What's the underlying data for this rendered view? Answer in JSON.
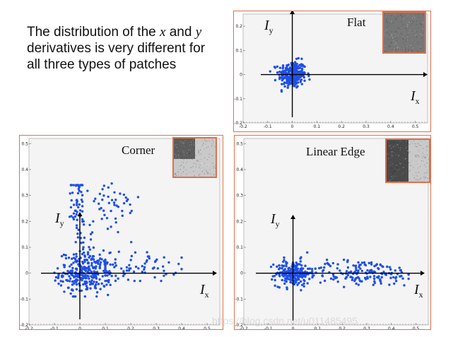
{
  "caption": {
    "line1_pre": "The distribution of the ",
    "x_var": "x",
    "line1_mid": " and ",
    "y_var": "y",
    "line2": "derivatives is very different for",
    "line3": "all three types of patches"
  },
  "axis_labels": {
    "x_base": "I",
    "x_sub": "x",
    "y_base": "I",
    "y_sub": "y"
  },
  "colors": {
    "points": "#1f4fe8",
    "frame": "#e0704a",
    "plot_bg": "#f4f4f4"
  },
  "icons": [
    "patch-thumbnail",
    "axis-arrow"
  ],
  "watermark": "https://blog.csdn.net/u011485495",
  "chart_data": [
    {
      "type": "scatter",
      "title": "Flat",
      "xlim": [
        -0.2,
        0.55
      ],
      "ylim": [
        -0.2,
        0.25
      ],
      "x_ticks": [
        -0.2,
        -0.1,
        0,
        0.1,
        0.2,
        0.3,
        0.4,
        0.5
      ],
      "x_tick_labels": [
        "-0.2",
        "-0.1",
        "0",
        "0.1",
        "0.2",
        "0.3",
        "0.4",
        "0.5"
      ],
      "y_ticks": [
        -0.2,
        -0.1,
        0,
        0.1,
        0.2
      ],
      "y_tick_labels": [
        "-0.2",
        "-0.1",
        "0",
        "0.1",
        "0.2"
      ],
      "clusters": [
        {
          "cx": 0.0,
          "cy": 0.0,
          "sx": 0.028,
          "sy": 0.028,
          "n": 260,
          "xmin": -0.09,
          "xmax": 0.07,
          "ymin": -0.07,
          "ymax": 0.09
        }
      ],
      "patch": {
        "kind": "flat"
      }
    },
    {
      "type": "scatter",
      "title": "Corner",
      "xlim": [
        -0.2,
        0.55
      ],
      "ylim": [
        -0.2,
        0.52
      ],
      "x_ticks": [
        -0.2,
        -0.1,
        0,
        0.1,
        0.2,
        0.3,
        0.4,
        0.5
      ],
      "x_tick_labels": [
        "-0.2",
        "-0.1",
        "0",
        "0.1",
        "0.2",
        "0.3",
        "0.4",
        "0.5"
      ],
      "y_ticks": [
        -0.2,
        -0.1,
        0,
        0.1,
        0.2,
        0.3,
        0.4,
        0.5
      ],
      "y_tick_labels": [
        "-0.2",
        "-0.1",
        "0",
        "0.1",
        "0.2",
        "0.3",
        "0.4",
        "0.5"
      ],
      "clusters": [
        {
          "cx": 0.02,
          "cy": 0.0,
          "sx": 0.05,
          "sy": 0.04,
          "n": 280,
          "xmin": -0.1,
          "xmax": 0.12,
          "ymin": -0.09,
          "ymax": 0.1
        },
        {
          "cx": 0.2,
          "cy": 0.02,
          "sx": 0.09,
          "sy": 0.03,
          "n": 80,
          "xmin": 0.1,
          "xmax": 0.4,
          "ymin": -0.03,
          "ymax": 0.09
        },
        {
          "cx": -0.01,
          "cy": 0.27,
          "sx": 0.012,
          "sy": 0.06,
          "n": 55,
          "xmin": -0.04,
          "xmax": 0.01,
          "ymin": 0.12,
          "ymax": 0.34
        },
        {
          "cx": 0.12,
          "cy": 0.25,
          "sx": 0.06,
          "sy": 0.06,
          "n": 45,
          "xmin": 0.03,
          "xmax": 0.27,
          "ymin": 0.12,
          "ymax": 0.35
        },
        {
          "cx": 0.03,
          "cy": 0.13,
          "sx": 0.03,
          "sy": 0.04,
          "n": 20,
          "xmin": -0.02,
          "xmax": 0.1,
          "ymin": 0.06,
          "ymax": 0.2
        }
      ],
      "patch": {
        "kind": "corner"
      }
    },
    {
      "type": "scatter",
      "title": "Linear Edge",
      "xlim": [
        -0.2,
        0.55
      ],
      "ylim": [
        -0.2,
        0.52
      ],
      "x_ticks": [
        -0.2,
        -0.1,
        0,
        0.1,
        0.2,
        0.3,
        0.4,
        0.5
      ],
      "x_tick_labels": [
        "-0.2",
        "-0.1",
        "0",
        "0.1",
        "0.2",
        "0.3",
        "0.4",
        "0.5"
      ],
      "y_ticks": [
        -0.2,
        -0.1,
        0,
        0.1,
        0.2,
        0.3,
        0.4,
        0.5
      ],
      "y_tick_labels": [
        "-0.2",
        "-0.1",
        "0",
        "0.1",
        "0.2",
        "0.3",
        "0.4",
        "0.5"
      ],
      "clusters": [
        {
          "cx": 0.0,
          "cy": 0.0,
          "sx": 0.035,
          "sy": 0.025,
          "n": 200,
          "xmin": -0.1,
          "xmax": 0.1,
          "ymin": -0.07,
          "ymax": 0.08
        },
        {
          "cx": 0.28,
          "cy": 0.0,
          "sx": 0.12,
          "sy": 0.025,
          "n": 170,
          "xmin": 0.05,
          "xmax": 0.47,
          "ymin": -0.06,
          "ymax": 0.07
        }
      ],
      "patch": {
        "kind": "edge"
      }
    }
  ]
}
